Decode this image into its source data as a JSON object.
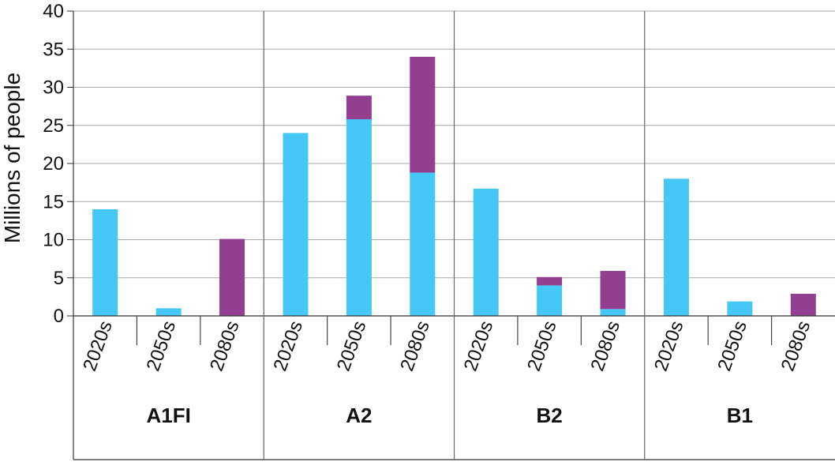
{
  "chart_data": {
    "type": "bar",
    "stacked": true,
    "ylabel": "Millions of people",
    "ylim": [
      0,
      40
    ],
    "yticks": [
      "0",
      "5",
      "10",
      "15",
      "20",
      "25",
      "30",
      "35",
      "40"
    ],
    "grid": true,
    "groups": [
      {
        "label": "A1FI",
        "categories": [
          "2020s",
          "2050s",
          "2080s"
        ]
      },
      {
        "label": "A2",
        "categories": [
          "2020s",
          "2050s",
          "2080s"
        ]
      },
      {
        "label": "B2",
        "categories": [
          "2020s",
          "2050s",
          "2080s"
        ]
      },
      {
        "label": "B1",
        "categories": [
          "2020s",
          "2050s",
          "2080s"
        ]
      }
    ],
    "series": [
      {
        "color": "#45c8f5",
        "values": [
          14,
          1,
          0,
          24,
          25.8,
          18.8,
          16.7,
          4,
          0.9,
          18,
          1.9,
          0
        ]
      },
      {
        "color": "#913f8e",
        "values": [
          0,
          0,
          10.1,
          0,
          3.1,
          15.2,
          0,
          1.1,
          5,
          0,
          0,
          2.9
        ]
      }
    ]
  }
}
